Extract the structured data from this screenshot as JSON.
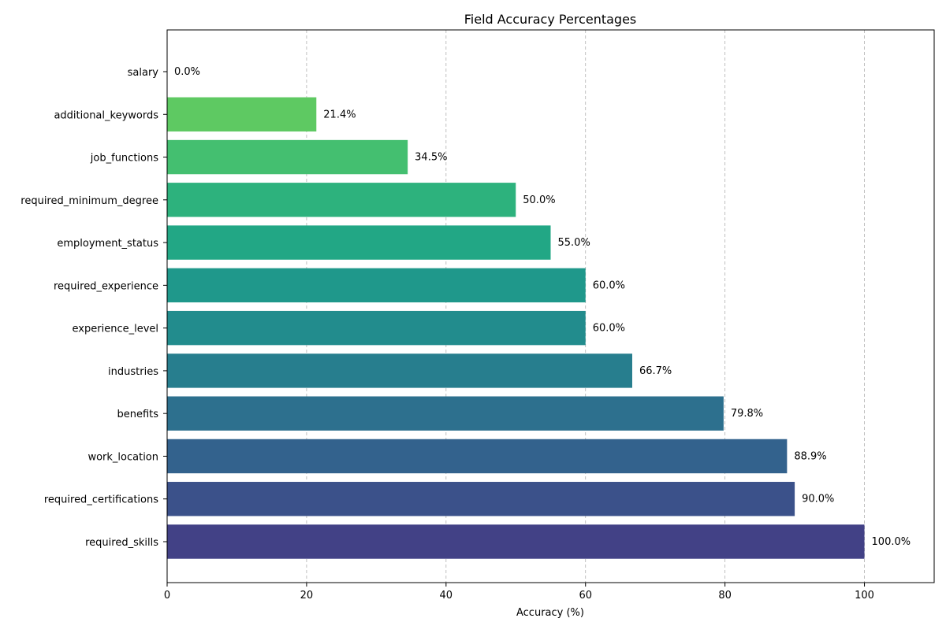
{
  "chart_data": {
    "type": "bar",
    "orientation": "horizontal",
    "title": "Field Accuracy Percentages",
    "xlabel": "Accuracy (%)",
    "ylabel": "",
    "xlim": [
      0,
      110
    ],
    "x_ticks": [
      0,
      20,
      40,
      60,
      80,
      100
    ],
    "grid": "x-axis, dashed",
    "categories": [
      "required_skills",
      "required_certifications",
      "work_location",
      "benefits",
      "industries",
      "experience_level",
      "required_experience",
      "employment_status",
      "required_minimum_degree",
      "job_functions",
      "additional_keywords",
      "salary"
    ],
    "values": [
      100.0,
      90.0,
      88.9,
      79.8,
      66.7,
      60.0,
      60.0,
      55.0,
      50.0,
      34.5,
      21.4,
      0.0
    ],
    "value_labels": [
      "100.0%",
      "90.0%",
      "88.9%",
      "79.8%",
      "66.7%",
      "60.0%",
      "60.0%",
      "55.0%",
      "50.0%",
      "34.5%",
      "21.4%",
      "0.0%"
    ],
    "colors": [
      "#424186",
      "#3b518a",
      "#33628d",
      "#2d708e",
      "#277e8e",
      "#228c8d",
      "#1f988b",
      "#22a785",
      "#2db27d",
      "#44bf70",
      "#5ec962",
      "#7fd34e"
    ]
  }
}
